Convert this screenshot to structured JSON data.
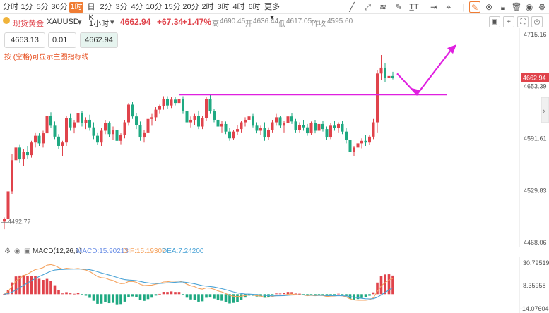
{
  "toolbar": {
    "timeframes": [
      "分时",
      "1分",
      "5分",
      "30分",
      "1时",
      "日K",
      "2分",
      "3分",
      "4分",
      "10分",
      "15分",
      "20分",
      "2时",
      "3时",
      "4时",
      "6时",
      "更多"
    ],
    "active_index": 4
  },
  "symbol": {
    "name": "现货黄金",
    "code": "XAUUSD",
    "interval": "1小时",
    "price": "4662.94",
    "change": "+67.34",
    "change_pct": "+1.47%",
    "high_label": "高",
    "high": "4690.45",
    "open_label": "开",
    "open": "4636.44",
    "low_label": "低",
    "low": "4617.05",
    "prev_label": "昨收",
    "prev": "4595.60"
  },
  "order": {
    "sell": "4663.13",
    "qty": "0.01",
    "buy": "4662.94"
  },
  "hint": "按 (空格)可显示主图指标线",
  "price_axis": {
    "ticks": [
      "4715.16",
      "4653.39",
      "4591.61",
      "4529.83",
      "4468.06"
    ],
    "current": "4662.94"
  },
  "annotations": {
    "high_marker": "4690.45",
    "low_marker": "4492.77"
  },
  "macd": {
    "title": "MACD(12,26,9)",
    "macd_label": "MACD:15.90213",
    "dif_label": "DIF:15.19307",
    "dea_label": "DEA:7.24200",
    "ticks": [
      "30.79519",
      "8.35958",
      "-14.07604"
    ]
  },
  "colors": {
    "up": "#e0434b",
    "down": "#1fa982",
    "accent": "#f07c33",
    "magenta": "#e020e0",
    "dif": "#f5a25d",
    "dea": "#4aa3d6"
  },
  "chart_data": {
    "type": "candlestick",
    "interval": "1小时",
    "ylim": [
      4468.06,
      4715.16
    ],
    "resistance_level": 4643,
    "candles": [
      [
        4492,
        4497,
        4483,
        4495
      ],
      [
        4495,
        4530,
        4492,
        4528
      ],
      [
        4528,
        4572,
        4525,
        4565
      ],
      [
        4565,
        4588,
        4560,
        4580
      ],
      [
        4580,
        4584,
        4562,
        4566
      ],
      [
        4566,
        4578,
        4558,
        4575
      ],
      [
        4575,
        4582,
        4567,
        4571
      ],
      [
        4571,
        4588,
        4568,
        4586
      ],
      [
        4586,
        4598,
        4580,
        4594
      ],
      [
        4594,
        4597,
        4582,
        4585
      ],
      [
        4585,
        4600,
        4580,
        4597
      ],
      [
        4597,
        4621,
        4594,
        4618
      ],
      [
        4618,
        4622,
        4603,
        4606
      ],
      [
        4606,
        4611,
        4590,
        4593
      ],
      [
        4593,
        4596,
        4578,
        4582
      ],
      [
        4582,
        4588,
        4570,
        4586
      ],
      [
        4586,
        4618,
        4582,
        4615
      ],
      [
        4615,
        4620,
        4600,
        4604
      ],
      [
        4604,
        4613,
        4597,
        4610
      ],
      [
        4610,
        4625,
        4605,
        4621
      ],
      [
        4621,
        4623,
        4605,
        4609
      ],
      [
        4609,
        4616,
        4602,
        4613
      ],
      [
        4613,
        4619,
        4600,
        4604
      ],
      [
        4604,
        4610,
        4590,
        4594
      ],
      [
        4594,
        4598,
        4583,
        4586
      ],
      [
        4586,
        4603,
        4582,
        4600
      ],
      [
        4600,
        4613,
        4596,
        4609
      ],
      [
        4609,
        4611,
        4592,
        4596
      ],
      [
        4596,
        4605,
        4589,
        4601
      ],
      [
        4601,
        4605,
        4584,
        4588
      ],
      [
        4588,
        4597,
        4584,
        4595
      ],
      [
        4595,
        4613,
        4591,
        4610
      ],
      [
        4610,
        4633,
        4606,
        4631
      ],
      [
        4631,
        4634,
        4614,
        4617
      ],
      [
        4617,
        4621,
        4602,
        4607
      ],
      [
        4607,
        4611,
        4588,
        4592
      ],
      [
        4592,
        4601,
        4586,
        4598
      ],
      [
        4598,
        4616,
        4594,
        4614
      ],
      [
        4614,
        4620,
        4606,
        4616
      ],
      [
        4616,
        4628,
        4612,
        4625
      ],
      [
        4625,
        4631,
        4620,
        4629
      ],
      [
        4629,
        4641,
        4625,
        4638
      ],
      [
        4638,
        4641,
        4626,
        4630
      ],
      [
        4630,
        4640,
        4627,
        4637
      ],
      [
        4637,
        4640,
        4630,
        4633
      ],
      [
        4633,
        4642,
        4630,
        4638
      ],
      [
        4638,
        4641,
        4620,
        4623
      ],
      [
        4623,
        4627,
        4606,
        4610
      ],
      [
        4610,
        4617,
        4604,
        4613
      ],
      [
        4613,
        4620,
        4607,
        4618
      ],
      [
        4618,
        4624,
        4602,
        4605
      ],
      [
        4605,
        4618,
        4602,
        4615
      ],
      [
        4615,
        4640,
        4612,
        4638
      ],
      [
        4638,
        4643,
        4620,
        4623
      ],
      [
        4623,
        4626,
        4610,
        4613
      ],
      [
        4613,
        4617,
        4602,
        4605
      ],
      [
        4605,
        4612,
        4598,
        4608
      ],
      [
        4608,
        4611,
        4596,
        4599
      ],
      [
        4599,
        4603,
        4588,
        4591
      ],
      [
        4591,
        4601,
        4589,
        4599
      ],
      [
        4599,
        4607,
        4595,
        4602
      ],
      [
        4602,
        4612,
        4598,
        4610
      ],
      [
        4610,
        4616,
        4605,
        4613
      ],
      [
        4613,
        4620,
        4606,
        4617
      ],
      [
        4617,
        4620,
        4604,
        4606
      ],
      [
        4606,
        4610,
        4597,
        4600
      ],
      [
        4600,
        4606,
        4595,
        4603
      ],
      [
        4603,
        4610,
        4588,
        4592
      ],
      [
        4592,
        4604,
        4589,
        4601
      ],
      [
        4601,
        4613,
        4598,
        4610
      ],
      [
        4610,
        4620,
        4606,
        4616
      ],
      [
        4616,
        4618,
        4603,
        4606
      ],
      [
        4606,
        4612,
        4598,
        4609
      ],
      [
        4609,
        4620,
        4605,
        4617
      ],
      [
        4617,
        4621,
        4608,
        4611
      ],
      [
        4611,
        4614,
        4598,
        4601
      ],
      [
        4601,
        4610,
        4598,
        4607
      ],
      [
        4607,
        4613,
        4600,
        4604
      ],
      [
        4604,
        4608,
        4594,
        4597
      ],
      [
        4597,
        4611,
        4595,
        4609
      ],
      [
        4609,
        4613,
        4597,
        4600
      ],
      [
        4600,
        4611,
        4597,
        4608
      ],
      [
        4608,
        4612,
        4599,
        4602
      ],
      [
        4602,
        4605,
        4589,
        4592
      ],
      [
        4592,
        4609,
        4590,
        4606
      ],
      [
        4606,
        4612,
        4600,
        4603
      ],
      [
        4603,
        4610,
        4598,
        4608
      ],
      [
        4608,
        4612,
        4596,
        4599
      ],
      [
        4599,
        4603,
        4585,
        4589
      ],
      [
        4589,
        4593,
        4538,
        4575
      ],
      [
        4575,
        4582,
        4570,
        4580
      ],
      [
        4580,
        4588,
        4575,
        4585
      ],
      [
        4585,
        4591,
        4579,
        4588
      ],
      [
        4588,
        4595,
        4582,
        4586
      ],
      [
        4586,
        4595,
        4583,
        4593
      ],
      [
        4593,
        4614,
        4590,
        4610
      ],
      [
        4610,
        4672,
        4598,
        4668
      ],
      [
        4668,
        4690,
        4660,
        4675
      ],
      [
        4675,
        4680,
        4658,
        4663
      ],
      [
        4663,
        4670,
        4660,
        4665
      ],
      [
        4665,
        4670,
        4661,
        4662.94
      ]
    ]
  }
}
